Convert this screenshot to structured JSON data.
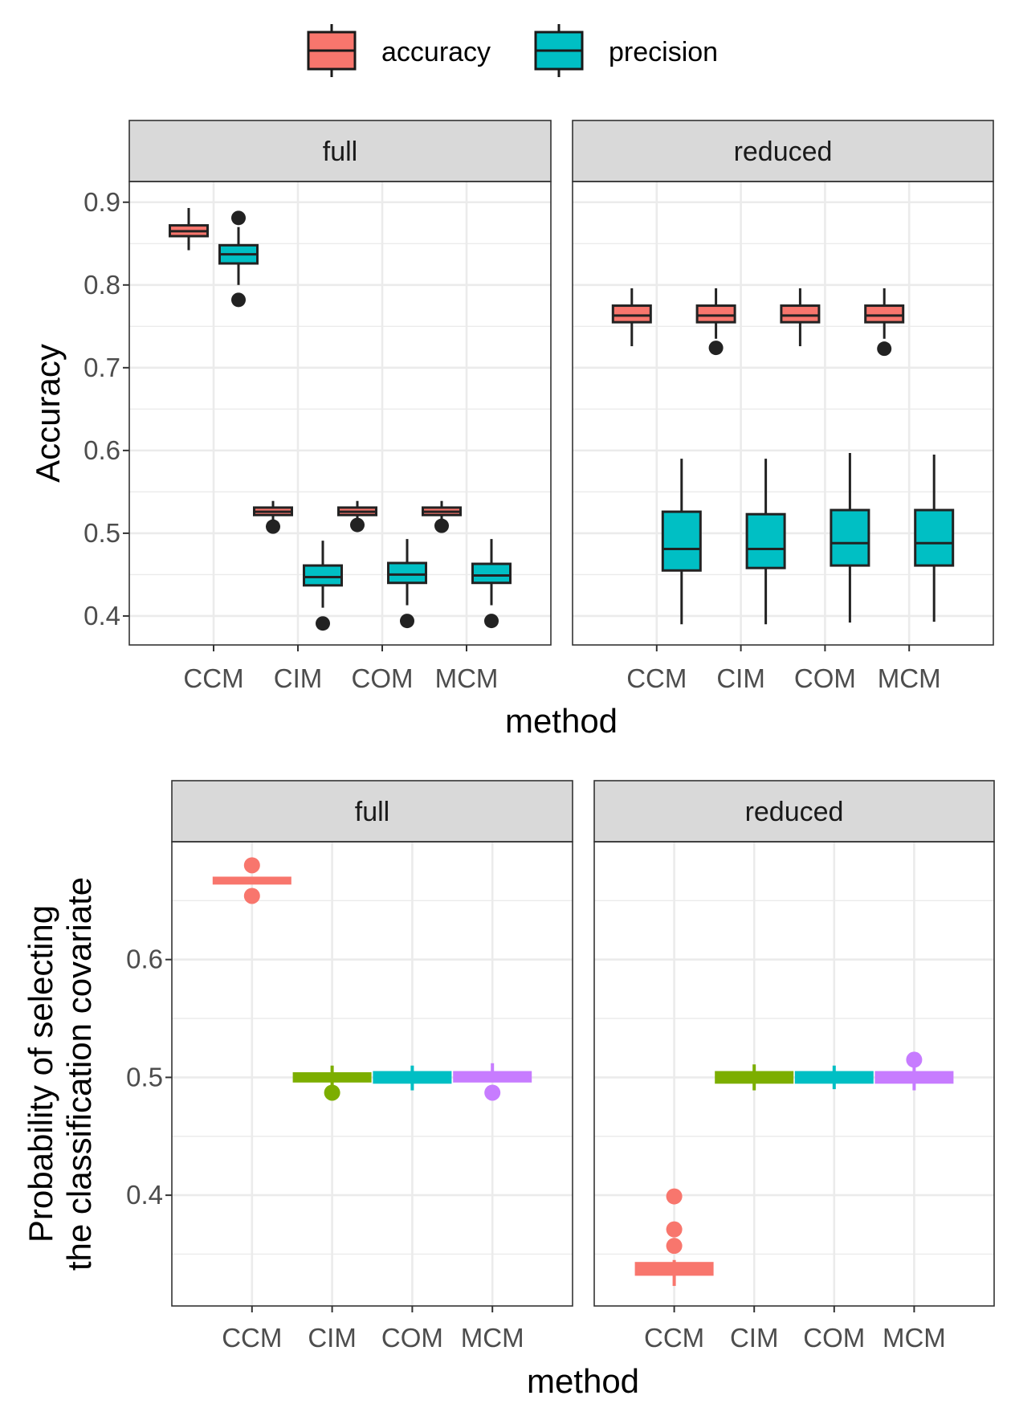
{
  "chart_data": [
    {
      "type": "box",
      "xlabel": "method",
      "ylabel": "Accuracy",
      "ylim": [
        0.365,
        0.925
      ],
      "yticks": [
        0.4,
        0.5,
        0.6,
        0.7,
        0.8,
        0.9
      ],
      "categories": [
        "CCM",
        "CIM",
        "COM",
        "MCM"
      ],
      "legend": {
        "placement": "top",
        "entries": [
          {
            "label": "accuracy",
            "color": "#F8766D"
          },
          {
            "label": "precision",
            "color": "#00BFC4"
          }
        ]
      },
      "panels": [
        {
          "strip": "full",
          "series": [
            {
              "name": "accuracy",
              "color": "#F8766D",
              "boxes": [
                {
                  "category": "CCM",
                  "min": 0.842,
                  "q1": 0.859,
                  "median": 0.865,
                  "q3": 0.872,
                  "max": 0.893,
                  "outliers": []
                },
                {
                  "category": "CIM",
                  "min": 0.516,
                  "q1": 0.522,
                  "median": 0.526,
                  "q3": 0.531,
                  "max": 0.539,
                  "outliers": [
                    0.508
                  ]
                },
                {
                  "category": "COM",
                  "min": 0.516,
                  "q1": 0.522,
                  "median": 0.526,
                  "q3": 0.531,
                  "max": 0.539,
                  "outliers": [
                    0.51
                  ]
                },
                {
                  "category": "MCM",
                  "min": 0.516,
                  "q1": 0.522,
                  "median": 0.526,
                  "q3": 0.531,
                  "max": 0.539,
                  "outliers": [
                    0.509
                  ]
                }
              ]
            },
            {
              "name": "precision",
              "color": "#00BFC4",
              "boxes": [
                {
                  "category": "CCM",
                  "min": 0.8,
                  "q1": 0.826,
                  "median": 0.837,
                  "q3": 0.848,
                  "max": 0.87,
                  "outliers": [
                    0.881,
                    0.782
                  ]
                },
                {
                  "category": "CIM",
                  "min": 0.41,
                  "q1": 0.437,
                  "median": 0.447,
                  "q3": 0.461,
                  "max": 0.491,
                  "outliers": [
                    0.391
                  ]
                },
                {
                  "category": "COM",
                  "min": 0.413,
                  "q1": 0.44,
                  "median": 0.45,
                  "q3": 0.464,
                  "max": 0.493,
                  "outliers": [
                    0.394
                  ]
                },
                {
                  "category": "MCM",
                  "min": 0.413,
                  "q1": 0.44,
                  "median": 0.449,
                  "q3": 0.463,
                  "max": 0.493,
                  "outliers": [
                    0.394
                  ]
                }
              ]
            }
          ]
        },
        {
          "strip": "reduced",
          "series": [
            {
              "name": "accuracy",
              "color": "#F8766D",
              "boxes": [
                {
                  "category": "CCM",
                  "min": 0.726,
                  "q1": 0.755,
                  "median": 0.763,
                  "q3": 0.775,
                  "max": 0.796,
                  "outliers": []
                },
                {
                  "category": "CIM",
                  "min": 0.735,
                  "q1": 0.755,
                  "median": 0.763,
                  "q3": 0.775,
                  "max": 0.796,
                  "outliers": [
                    0.724
                  ]
                },
                {
                  "category": "COM",
                  "min": 0.726,
                  "q1": 0.755,
                  "median": 0.763,
                  "q3": 0.775,
                  "max": 0.796,
                  "outliers": []
                },
                {
                  "category": "MCM",
                  "min": 0.735,
                  "q1": 0.755,
                  "median": 0.763,
                  "q3": 0.775,
                  "max": 0.796,
                  "outliers": [
                    0.723
                  ]
                }
              ]
            },
            {
              "name": "precision",
              "color": "#00BFC4",
              "boxes": [
                {
                  "category": "CCM",
                  "min": 0.39,
                  "q1": 0.455,
                  "median": 0.481,
                  "q3": 0.526,
                  "max": 0.59,
                  "outliers": []
                },
                {
                  "category": "CIM",
                  "min": 0.39,
                  "q1": 0.458,
                  "median": 0.481,
                  "q3": 0.523,
                  "max": 0.59,
                  "outliers": []
                },
                {
                  "category": "COM",
                  "min": 0.392,
                  "q1": 0.461,
                  "median": 0.488,
                  "q3": 0.528,
                  "max": 0.597,
                  "outliers": []
                },
                {
                  "category": "MCM",
                  "min": 0.393,
                  "q1": 0.461,
                  "median": 0.488,
                  "q3": 0.528,
                  "max": 0.595,
                  "outliers": []
                }
              ]
            }
          ]
        }
      ]
    },
    {
      "type": "box",
      "xlabel": "method",
      "ylabel": [
        "Probability of selecting",
        "the classification covariate"
      ],
      "ylim": [
        0.306,
        0.7
      ],
      "yticks": [
        0.4,
        0.5,
        0.6
      ],
      "categories": [
        "CCM",
        "CIM",
        "COM",
        "MCM"
      ],
      "category_colors": {
        "CCM": "#F8766D",
        "CIM": "#7CAE00",
        "COM": "#00BFC4",
        "MCM": "#C77CFF"
      },
      "panels": [
        {
          "strip": "full",
          "boxes": [
            {
              "category": "CCM",
              "min": 0.665,
              "q1": 0.665,
              "median": 0.667,
              "q3": 0.669,
              "max": 0.669,
              "outliers": [
                0.68,
                0.654
              ]
            },
            {
              "category": "CIM",
              "min": 0.49,
              "q1": 0.497,
              "median": 0.5,
              "q3": 0.503,
              "max": 0.51,
              "outliers": [
                0.487
              ]
            },
            {
              "category": "COM",
              "min": 0.489,
              "q1": 0.496,
              "median": 0.5,
              "q3": 0.504,
              "max": 0.51,
              "outliers": []
            },
            {
              "category": "MCM",
              "min": 0.497,
              "q1": 0.497,
              "median": 0.5,
              "q3": 0.504,
              "max": 0.512,
              "outliers": [
                0.487
              ]
            }
          ]
        },
        {
          "strip": "reduced",
          "boxes": [
            {
              "category": "CCM",
              "min": 0.323,
              "q1": 0.333,
              "median": 0.337,
              "q3": 0.342,
              "max": 0.345,
              "outliers": [
                0.399,
                0.371,
                0.357
              ]
            },
            {
              "category": "CIM",
              "min": 0.489,
              "q1": 0.496,
              "median": 0.5,
              "q3": 0.504,
              "max": 0.511,
              "outliers": []
            },
            {
              "category": "COM",
              "min": 0.49,
              "q1": 0.496,
              "median": 0.5,
              "q3": 0.504,
              "max": 0.51,
              "outliers": []
            },
            {
              "category": "MCM",
              "min": 0.489,
              "q1": 0.496,
              "median": 0.5,
              "q3": 0.504,
              "max": 0.512,
              "outliers": [
                0.515
              ]
            }
          ]
        }
      ]
    }
  ]
}
